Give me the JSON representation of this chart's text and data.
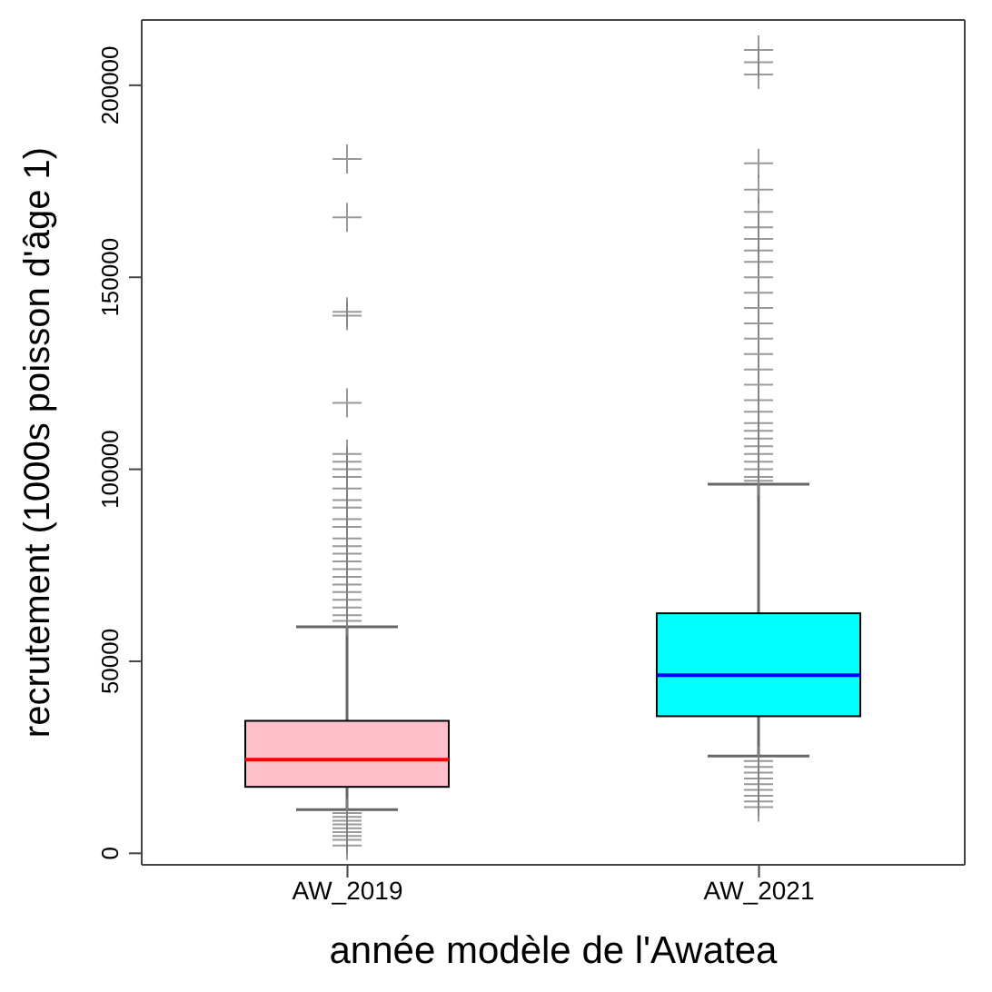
{
  "chart_data": {
    "type": "box",
    "xlabel": "année modèle de l'Awatea",
    "ylabel": "recrutement (1000s poisson d'âge 1)",
    "categories": [
      "AW_2019",
      "AW_2021"
    ],
    "colors": [
      "#ff0000",
      "#0000ff"
    ],
    "marker": "cross",
    "series": [
      {
        "color": "#ffc0cb",
        "boxes": [
          {
            "low": 11400,
            "q1": 17300,
            "median": 24400,
            "q3": 34500,
            "high": 59000,
            "outliers": [
              180800,
              165600,
              141000,
              140000,
              117300,
              104000,
              102000,
              100000,
              98000,
              95000,
              92000,
              90000,
              87000,
              85000,
              82000,
              80000,
              78000,
              76000,
              74000,
              72000,
              70000,
              68000,
              66000,
              64000,
              62000,
              60500,
              10500,
              9500,
              8500,
              7500,
              6500,
              5500,
              4500,
              3500,
              2000
            ]
          },
          null
        ]
      },
      {
        "color": "#00ffff",
        "boxes": [
          null,
          {
            "low": 25300,
            "q1": 35700,
            "median": 46400,
            "q3": 62500,
            "high": 96100,
            "outliers": [
              209200,
              206000,
              202800,
              179700,
              172800,
              167000,
              163000,
              160000,
              157000,
              154000,
              150000,
              146000,
              142000,
              138000,
              134000,
              130000,
              126000,
              122000,
              118000,
              115000,
              112000,
              110000,
              108000,
              106000,
              104000,
              102000,
              100000,
              98000,
              97000,
              24000,
              22500,
              21000,
              19500,
              18000,
              16500,
              15000,
              13500,
              12000
            ]
          }
        ]
      }
    ],
    "ylim": [
      -3000,
      217000
    ],
    "yticks": [
      0,
      50000,
      100000,
      150000,
      200000
    ]
  }
}
